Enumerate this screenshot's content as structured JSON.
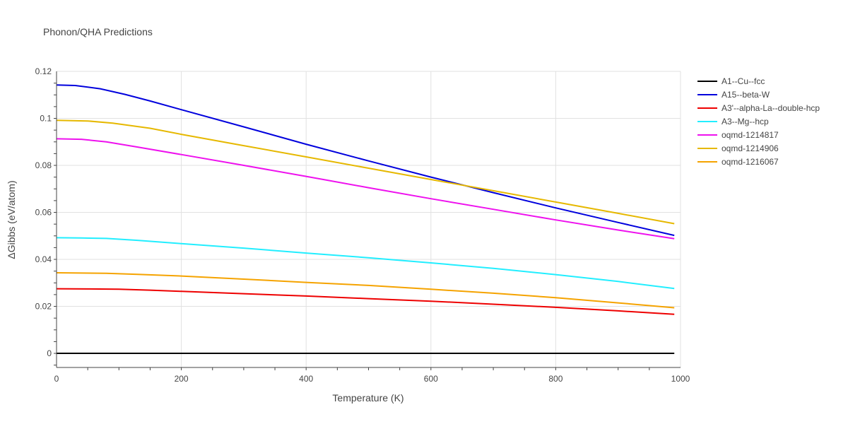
{
  "chart_data": {
    "type": "line",
    "title": "Phonon/QHA Predictions",
    "xlabel": "Temperature (K)",
    "ylabel": "ΔGibbs (eV/atom)",
    "xlim": [
      0,
      1000
    ],
    "ylim": [
      -0.006,
      0.12
    ],
    "xticks": [
      0,
      200,
      400,
      600,
      800,
      1000
    ],
    "xtick_labels": [
      "0",
      "200",
      "400",
      "600",
      "800",
      "1000"
    ],
    "yticks": [
      0,
      0.02,
      0.04,
      0.06,
      0.08,
      0.1,
      0.12
    ],
    "ytick_labels": [
      "0",
      "0.02",
      "0.04",
      "0.06",
      "0.08",
      "0.1",
      "0.12"
    ],
    "grid": true,
    "legend_position": "right",
    "series": [
      {
        "name": "A1--Cu--fcc",
        "color": "#000000",
        "x": [
          0,
          990
        ],
        "y": [
          0,
          0
        ]
      },
      {
        "name": "A15--beta-W",
        "color": "#0000dd",
        "x": [
          0,
          30,
          70,
          110,
          150,
          200,
          300,
          400,
          500,
          600,
          700,
          800,
          900,
          990
        ],
        "y": [
          0.1142,
          0.114,
          0.1126,
          0.1102,
          0.1074,
          0.1037,
          0.0964,
          0.089,
          0.0819,
          0.075,
          0.0684,
          0.0619,
          0.0557,
          0.0502
        ]
      },
      {
        "name": "A3'--alpha-La--double-hcp",
        "color": "#ee0000",
        "x": [
          0,
          50,
          100,
          150,
          200,
          300,
          400,
          500,
          600,
          700,
          800,
          900,
          990
        ],
        "y": [
          0.0275,
          0.0274,
          0.0273,
          0.0269,
          0.0264,
          0.0254,
          0.0244,
          0.0233,
          0.0222,
          0.0209,
          0.0196,
          0.0181,
          0.0166
        ]
      },
      {
        "name": "A3--Mg--hcp",
        "color": "#22eeff",
        "x": [
          0,
          40,
          80,
          130,
          200,
          300,
          400,
          500,
          600,
          700,
          800,
          900,
          990
        ],
        "y": [
          0.0492,
          0.0491,
          0.0489,
          0.0481,
          0.0467,
          0.0448,
          0.0427,
          0.0407,
          0.0385,
          0.0362,
          0.0335,
          0.0306,
          0.0276
        ]
      },
      {
        "name": "oqmd-1214817",
        "color": "#ee11ee",
        "x": [
          0,
          40,
          80,
          130,
          200,
          300,
          400,
          500,
          600,
          700,
          800,
          900,
          990
        ],
        "y": [
          0.0913,
          0.0911,
          0.09,
          0.0878,
          0.0846,
          0.08,
          0.0753,
          0.0705,
          0.0658,
          0.0613,
          0.0568,
          0.0525,
          0.0488
        ]
      },
      {
        "name": "oqmd-1214906",
        "color": "#e6b800",
        "x": [
          0,
          50,
          90,
          150,
          200,
          300,
          400,
          500,
          600,
          700,
          800,
          900,
          990
        ],
        "y": [
          0.0992,
          0.0989,
          0.098,
          0.0958,
          0.0932,
          0.0884,
          0.0836,
          0.0788,
          0.074,
          0.0692,
          0.0644,
          0.0596,
          0.0552
        ]
      },
      {
        "name": "oqmd-1216067",
        "color": "#f5a300",
        "x": [
          0,
          80,
          130,
          200,
          300,
          400,
          500,
          600,
          700,
          800,
          900,
          990
        ],
        "y": [
          0.0343,
          0.0341,
          0.0336,
          0.0329,
          0.0316,
          0.0302,
          0.0289,
          0.0273,
          0.0256,
          0.0237,
          0.0215,
          0.0194
        ]
      }
    ]
  }
}
